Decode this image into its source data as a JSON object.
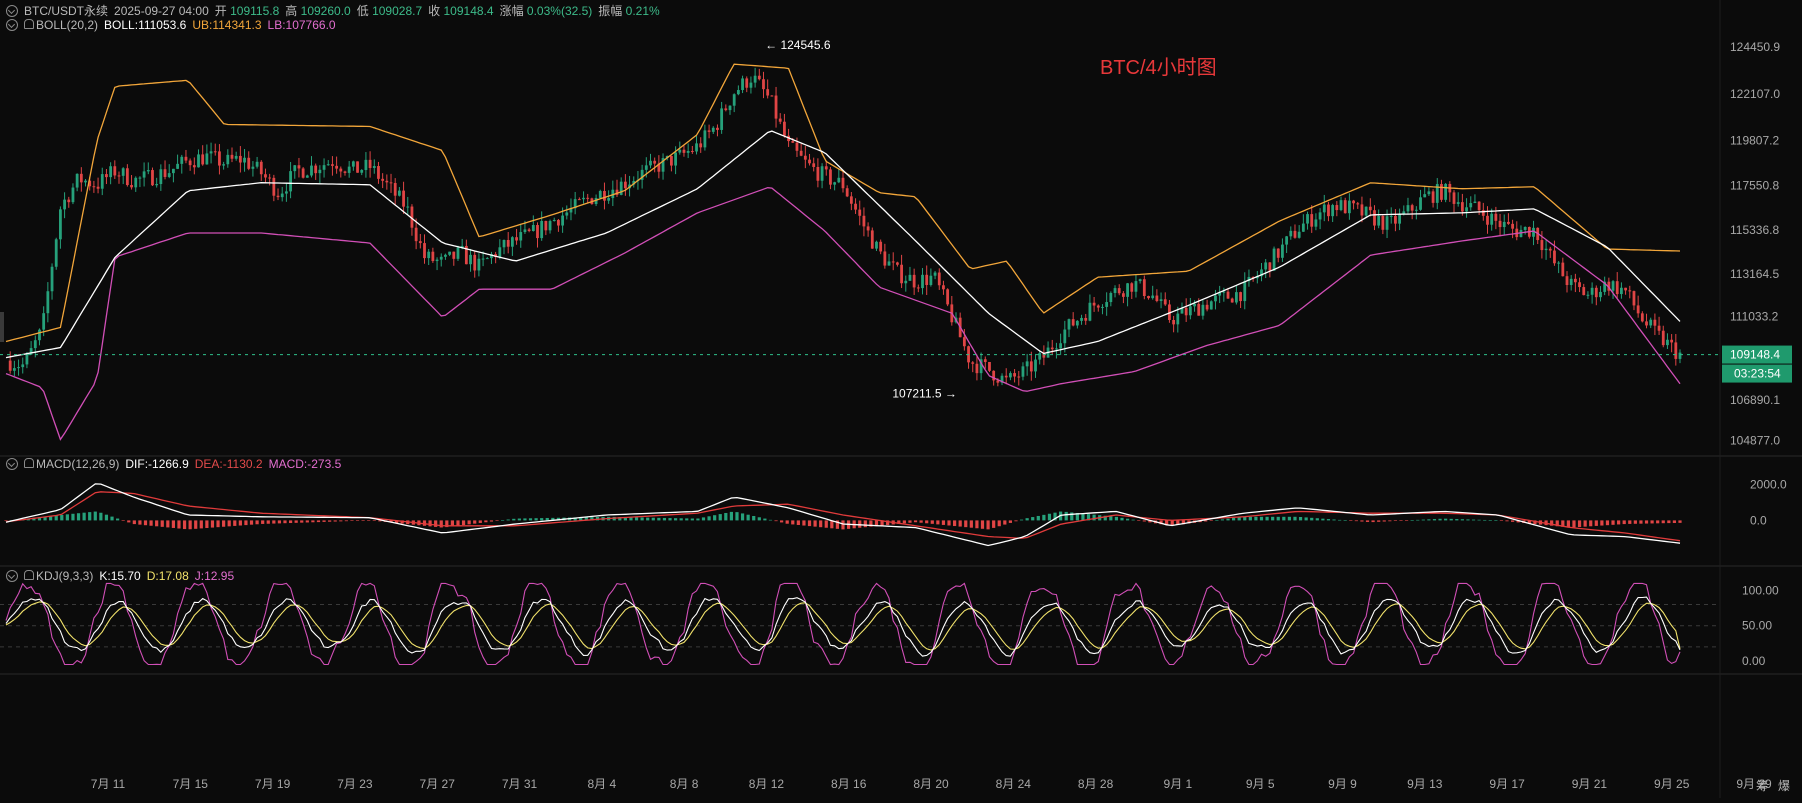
{
  "header": {
    "symbol": "BTC/USDT永续",
    "datetime": "2025-09-27 04:00",
    "open_label": "开",
    "open": "109115.8",
    "high_label": "高",
    "high": "109260.0",
    "low_label": "低",
    "low": "109028.7",
    "close_label": "收",
    "close": "109148.4",
    "change_label": "涨幅",
    "change": "0.03%(32.5)",
    "amp_label": "振幅",
    "amp": "0.21%"
  },
  "boll": {
    "label": "BOLL(20,2)",
    "mid": "BOLL:111053.6",
    "ub": "UB:114341.3",
    "lb": "LB:107766.0"
  },
  "macd": {
    "label": "MACD(12,26,9)",
    "dif": "DIF:-1266.9",
    "dea": "DEA:-1130.2",
    "macd": "MACD:-273.5"
  },
  "kdj": {
    "label": "KDJ(9,3,3)",
    "k": "K:15.70",
    "d": "D:17.08",
    "j": "J:12.95"
  },
  "corner": {
    "btn1": "筹",
    "btn2": "爆"
  },
  "colors": {
    "up": "#26a17b",
    "down": "#e04545",
    "mid": "#ffffff",
    "ub": "#f2a63a",
    "lb": "#d14fb7",
    "dif": "#ffffff",
    "dea": "#e03b3b",
    "k": "#ffffff",
    "d": "#f1e26b",
    "j": "#d14fb7"
  },
  "chart_data": [
    {
      "type": "candlestick",
      "title": "BTC/4小时图",
      "ylim": [
        104300,
        125300
      ],
      "y_ticks": [
        "124450.9",
        "122107.0",
        "119807.2",
        "117550.8",
        "115336.8",
        "113164.5",
        "111033.2",
        "109148.4",
        "106890.1",
        "104877.0"
      ],
      "x_ticks": [
        "7月 11",
        "7月 15",
        "7月 19",
        "7月 23",
        "7月 27",
        "7月 31",
        "8月 4",
        "8月 8",
        "8月 12",
        "8月 16",
        "8月 20",
        "8月 24",
        "8月 28",
        "9月 1",
        "9月 5",
        "9月 9",
        "9月 13",
        "9月 17",
        "9月 21",
        "9月 25",
        "9月 29"
      ],
      "current_price": "109148.4",
      "countdown": "03:23:54",
      "annotations": [
        {
          "text": "← 124545.6",
          "date_index": 41.5,
          "value": 124545.6
        },
        {
          "text": "107211.5 →",
          "date_index": 53,
          "value": 107211.5
        }
      ],
      "date_index_note_hidden": true,
      "close_path": [
        [
          0,
          108850
        ],
        [
          1,
          108600
        ],
        [
          2,
          110400
        ],
        [
          3,
          116500
        ],
        [
          4,
          117900
        ],
        [
          5,
          117600
        ],
        [
          6,
          118300
        ],
        [
          7,
          117800
        ],
        [
          8,
          118000
        ],
        [
          9,
          118300
        ],
        [
          10,
          118800
        ],
        [
          11,
          119000
        ],
        [
          12,
          118700
        ],
        [
          13,
          118900
        ],
        [
          14,
          118200
        ],
        [
          15,
          117200
        ],
        [
          16,
          118300
        ],
        [
          17,
          118500
        ],
        [
          18,
          118800
        ],
        [
          19,
          118300
        ],
        [
          20,
          118500
        ],
        [
          21,
          117500
        ],
        [
          22,
          116500
        ],
        [
          23,
          114000
        ],
        [
          24,
          113700
        ],
        [
          25,
          114200
        ],
        [
          26,
          113500
        ],
        [
          27,
          114300
        ],
        [
          28,
          114800
        ],
        [
          29,
          115200
        ],
        [
          30,
          115800
        ],
        [
          31,
          116300
        ],
        [
          32,
          116900
        ],
        [
          33,
          117300
        ],
        [
          34,
          117700
        ],
        [
          35,
          118200
        ],
        [
          36,
          118600
        ],
        [
          37,
          119000
        ],
        [
          38,
          119500
        ],
        [
          39,
          120500
        ],
        [
          40,
          122200
        ],
        [
          41,
          123000
        ],
        [
          42,
          121800
        ],
        [
          43,
          119500
        ],
        [
          44,
          118600
        ],
        [
          45,
          118000
        ],
        [
          46,
          117600
        ],
        [
          47,
          115800
        ],
        [
          48,
          114200
        ],
        [
          49,
          113200
        ],
        [
          50,
          112800
        ],
        [
          51,
          113000
        ],
        [
          52,
          111000
        ],
        [
          53,
          108800
        ],
        [
          54,
          108400
        ],
        [
          55,
          107800
        ],
        [
          56,
          108300
        ],
        [
          57,
          109000
        ],
        [
          58,
          110200
        ],
        [
          59,
          111000
        ],
        [
          60,
          111800
        ],
        [
          61,
          112300
        ],
        [
          62,
          112700
        ],
        [
          63,
          112100
        ],
        [
          64,
          110900
        ],
        [
          65,
          111300
        ],
        [
          66,
          111700
        ],
        [
          67,
          112000
        ],
        [
          68,
          112300
        ],
        [
          69,
          113300
        ],
        [
          70,
          114300
        ],
        [
          71,
          115400
        ],
        [
          72,
          116100
        ],
        [
          73,
          116600
        ],
        [
          74,
          116400
        ],
        [
          75,
          116000
        ],
        [
          76,
          115600
        ],
        [
          77,
          116200
        ],
        [
          78,
          117000
        ],
        [
          79,
          117300
        ],
        [
          80,
          116700
        ],
        [
          81,
          116300
        ],
        [
          82,
          115700
        ],
        [
          83,
          115300
        ],
        [
          84,
          115400
        ],
        [
          85,
          113800
        ],
        [
          86,
          112600
        ],
        [
          87,
          112100
        ],
        [
          88,
          112700
        ],
        [
          89,
          112300
        ],
        [
          90,
          110800
        ],
        [
          91,
          109900
        ],
        [
          92,
          109148
        ]
      ],
      "boll_mid": [
        [
          0,
          109000
        ],
        [
          3,
          109500
        ],
        [
          6,
          114000
        ],
        [
          10,
          117300
        ],
        [
          14,
          117700
        ],
        [
          20,
          117600
        ],
        [
          24,
          114700
        ],
        [
          28,
          113800
        ],
        [
          33,
          115200
        ],
        [
          38,
          117400
        ],
        [
          42,
          120300
        ],
        [
          45,
          119200
        ],
        [
          50,
          114800
        ],
        [
          54,
          111200
        ],
        [
          57,
          109200
        ],
        [
          60,
          109800
        ],
        [
          65,
          111600
        ],
        [
          70,
          113500
        ],
        [
          75,
          116100
        ],
        [
          80,
          116200
        ],
        [
          84,
          116400
        ],
        [
          88,
          114500
        ],
        [
          92,
          110800
        ]
      ],
      "boll_ub": [
        [
          0,
          109800
        ],
        [
          3,
          110500
        ],
        [
          5,
          119800
        ],
        [
          6,
          122500
        ],
        [
          10,
          122800
        ],
        [
          12,
          120600
        ],
        [
          20,
          120500
        ],
        [
          24,
          119300
        ],
        [
          26,
          115000
        ],
        [
          30,
          116100
        ],
        [
          34,
          117300
        ],
        [
          38,
          120100
        ],
        [
          40,
          123600
        ],
        [
          43,
          123400
        ],
        [
          45,
          118800
        ],
        [
          48,
          117200
        ],
        [
          50,
          117000
        ],
        [
          53,
          113400
        ],
        [
          55,
          113800
        ],
        [
          57,
          111200
        ],
        [
          60,
          113000
        ],
        [
          65,
          113300
        ],
        [
          70,
          115800
        ],
        [
          75,
          117700
        ],
        [
          80,
          117400
        ],
        [
          84,
          117500
        ],
        [
          88,
          114400
        ],
        [
          92,
          114300
        ]
      ],
      "boll_lb": [
        [
          0,
          108200
        ],
        [
          2,
          107500
        ],
        [
          3,
          104900
        ],
        [
          5,
          107900
        ],
        [
          6,
          114000
        ],
        [
          10,
          115200
        ],
        [
          14,
          115200
        ],
        [
          20,
          114700
        ],
        [
          24,
          111000
        ],
        [
          26,
          112400
        ],
        [
          30,
          112400
        ],
        [
          34,
          114200
        ],
        [
          38,
          116200
        ],
        [
          42,
          117500
        ],
        [
          45,
          115300
        ],
        [
          48,
          112500
        ],
        [
          52,
          111200
        ],
        [
          54,
          108100
        ],
        [
          56,
          107300
        ],
        [
          58,
          107700
        ],
        [
          62,
          108300
        ],
        [
          66,
          109600
        ],
        [
          70,
          110600
        ],
        [
          75,
          114100
        ],
        [
          80,
          114800
        ],
        [
          84,
          115300
        ],
        [
          88,
          112600
        ],
        [
          92,
          107700
        ]
      ]
    },
    {
      "type": "macd",
      "label": "MACD(12,26,9)",
      "y_ticks": [
        "2000.0",
        "0.0"
      ],
      "ylim": [
        -2200,
        2800
      ],
      "dif": [
        [
          0,
          -100
        ],
        [
          3,
          600
        ],
        [
          5,
          2100
        ],
        [
          7,
          1300
        ],
        [
          10,
          300
        ],
        [
          14,
          200
        ],
        [
          20,
          150
        ],
        [
          24,
          -700
        ],
        [
          28,
          -200
        ],
        [
          33,
          300
        ],
        [
          38,
          500
        ],
        [
          40,
          1300
        ],
        [
          43,
          700
        ],
        [
          46,
          -200
        ],
        [
          50,
          -400
        ],
        [
          54,
          -1400
        ],
        [
          56,
          -900
        ],
        [
          58,
          300
        ],
        [
          61,
          500
        ],
        [
          64,
          -300
        ],
        [
          68,
          400
        ],
        [
          71,
          700
        ],
        [
          75,
          300
        ],
        [
          79,
          500
        ],
        [
          82,
          300
        ],
        [
          86,
          -800
        ],
        [
          89,
          -900
        ],
        [
          92,
          -1267
        ]
      ],
      "dea": [
        [
          0,
          -80
        ],
        [
          3,
          300
        ],
        [
          5,
          1600
        ],
        [
          7,
          1500
        ],
        [
          10,
          800
        ],
        [
          14,
          400
        ],
        [
          20,
          150
        ],
        [
          24,
          -300
        ],
        [
          28,
          -300
        ],
        [
          33,
          100
        ],
        [
          38,
          400
        ],
        [
          40,
          800
        ],
        [
          43,
          900
        ],
        [
          46,
          300
        ],
        [
          50,
          -300
        ],
        [
          54,
          -900
        ],
        [
          56,
          -1000
        ],
        [
          58,
          -200
        ],
        [
          61,
          300
        ],
        [
          64,
          0
        ],
        [
          68,
          200
        ],
        [
          71,
          500
        ],
        [
          75,
          400
        ],
        [
          79,
          400
        ],
        [
          82,
          300
        ],
        [
          86,
          -400
        ],
        [
          89,
          -700
        ],
        [
          92,
          -1130
        ]
      ]
    },
    {
      "type": "kdj",
      "label": "KDJ(9,3,3)",
      "y_ticks": [
        "100.00",
        "50.00",
        "0.00"
      ],
      "ylim": [
        -10,
        112
      ],
      "k_last": 15.7,
      "d_last": 17.08,
      "j_last": 12.95
    }
  ]
}
